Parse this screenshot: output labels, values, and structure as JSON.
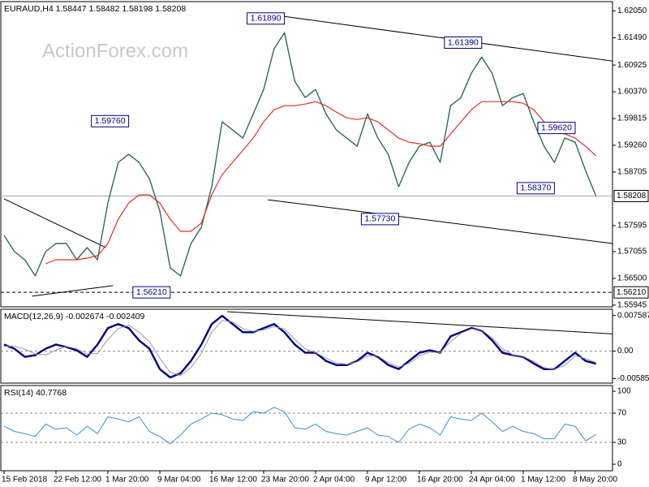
{
  "chart_data": [
    {
      "type": "line",
      "title": "EURAUD,H4  1.58447 1.58482 1.58198 1.58208",
      "watermark": "ActionForex.com",
      "categories": [
        "15 Feb 2018",
        null,
        null,
        null,
        null,
        "22 Feb 12:00",
        null,
        null,
        null,
        null,
        "1 Mar 20:00",
        null,
        null,
        null,
        null,
        "9 Mar 04:00",
        null,
        null,
        null,
        null,
        "16 Mar 12:00",
        null,
        null,
        null,
        null,
        "23 Mar 20:00",
        null,
        null,
        null,
        null,
        "2 Apr 04:00",
        null,
        null,
        null,
        null,
        "9 Apr 12:00",
        null,
        null,
        null,
        null,
        "16 Apr 20:00",
        null,
        null,
        null,
        null,
        "24 Apr 04:00",
        null,
        null,
        null,
        null,
        "1 May 12:00",
        null,
        null,
        null,
        null,
        "8 May 20:00",
        null,
        null
      ],
      "ylim": [
        1.5591,
        1.6224
      ],
      "yticks": [
        {
          "value": 1.6205,
          "label": "1.62050"
        },
        {
          "value": 1.6149,
          "label": "1.61490"
        },
        1.60925,
        {
          "value": 1.6037,
          "label": "1.60370"
        },
        1.59815,
        {
          "value": 1.5926,
          "label": "1.59260"
        },
        1.58705,
        1.57595,
        1.57055,
        {
          "value": 1.565,
          "label": "1.56500"
        },
        1.55945
      ],
      "series": [
        {
          "color": "#2e6b5b",
          "width": 1.4,
          "values": [
            1.57391,
            1.57055,
            1.56887,
            1.56551,
            1.57055,
            1.57223,
            1.57223,
            1.56887,
            1.57139,
            1.56887,
            1.58064,
            1.58905,
            1.59073,
            1.58905,
            1.58569,
            1.57896,
            1.56719,
            1.56551,
            1.57223,
            1.5756,
            1.584,
            1.59746,
            1.59578,
            1.5941,
            1.59914,
            1.60419,
            1.6126,
            1.61596,
            1.60587,
            1.6025,
            1.60419,
            1.59914,
            1.59578,
            1.5941,
            1.59241,
            1.59914,
            1.5941,
            1.59073,
            1.584,
            1.58905,
            1.59241,
            1.59325,
            1.58905,
            1.60082,
            1.6025,
            1.60755,
            1.61091,
            1.60755,
            1.60082,
            1.6025,
            1.60335,
            1.59746,
            1.59241,
            1.58905,
            1.5941,
            1.59325,
            1.58737,
            1.58208
          ]
        },
        {
          "color": "#e03028",
          "width": 1.2,
          "values": [
            null,
            null,
            null,
            null,
            1.56803,
            1.56887,
            1.56887,
            1.56887,
            1.5692,
            1.56971,
            1.57223,
            1.57728,
            1.58064,
            1.58232,
            1.58232,
            1.58064,
            1.57728,
            1.57475,
            1.57475,
            1.57644,
            1.58232,
            1.58653,
            1.58905,
            1.59157,
            1.5941,
            1.59746,
            1.59998,
            1.60082,
            1.60082,
            1.60116,
            1.60166,
            1.60082,
            1.59948,
            1.5983,
            1.59796,
            1.5983,
            1.59746,
            1.59578,
            1.5941,
            1.59325,
            1.59292,
            1.59241,
            1.59241,
            1.59494,
            1.59746,
            1.59998,
            1.60166,
            1.60166,
            1.60166,
            1.60166,
            1.60133,
            1.59998,
            1.59746,
            1.59578,
            1.59494,
            1.5941,
            1.59241,
            1.5904
          ]
        }
      ],
      "price_lines": [
        {
          "value": 1.58208,
          "label": "1.58208",
          "color": "#aaaaaa",
          "dashed": false
        },
        {
          "value": 1.5621,
          "label": "1.56210",
          "color": "#000000",
          "dashed": true
        }
      ],
      "trendlines": [
        {
          "x": [
            27,
            58.6
          ],
          "y": [
            1.61932,
            1.61007
          ]
        },
        {
          "x": [
            25.4,
            58.6
          ],
          "y": [
            1.58131,
            1.57223
          ]
        },
        {
          "x": [
            0,
            9.8
          ],
          "y": [
            1.58148,
            1.57139
          ]
        },
        {
          "x": [
            2.7,
            10.5
          ],
          "y": [
            1.5613,
            1.56349
          ]
        }
      ],
      "annotations": [
        {
          "x": 27,
          "value": 1.6189,
          "label": "1.61890"
        },
        {
          "x": 12,
          "value": 1.5976,
          "label": "1.59760"
        },
        {
          "x": 16,
          "value": 1.5621,
          "label": "1.56210"
        },
        {
          "x": 38,
          "value": 1.5773,
          "label": "1.57730"
        },
        {
          "x": 46,
          "value": 1.6139,
          "label": "1.61390"
        },
        {
          "x": 55,
          "value": 1.5962,
          "label": "1.59620"
        },
        {
          "x": 53,
          "value": 1.5837,
          "label": "1.58370"
        }
      ]
    },
    {
      "type": "line",
      "title": "MACD(12,26,9) -0.002674 -0.002409",
      "ylim": [
        -0.0068,
        0.0089
      ],
      "yticks": [
        0.007587,
        {
          "value": 0,
          "label": "0.00"
        },
        -0.005853
      ],
      "levels": [
        0
      ],
      "series": [
        {
          "color": "#00007f",
          "width": 2.4,
          "values": [
            0.0014,
            0.00052,
            -0.00122,
            -0.00087,
            0.00052,
            0.0014,
            0.00087,
            0.00017,
            -0.00122,
            0.0014,
            0.00489,
            0.00576,
            0.00489,
            0.00227,
            0.00052,
            -0.00384,
            -0.00559,
            -0.00471,
            -0.00209,
            0.0014,
            0.00576,
            0.00751,
            0.00576,
            0.00401,
            0.00401,
            0.00489,
            0.00576,
            0.00401,
            0.0014,
            -0.00035,
            -0.00035,
            -0.00209,
            -0.00297,
            -0.00297,
            -0.00209,
            -0.00035,
            -0.00122,
            -0.00297,
            -0.00384,
            -0.00209,
            -0.00035,
            0.00017,
            -0.00035,
            0.00314,
            0.00401,
            0.00489,
            0.00436,
            0.00227,
            -0.00035,
            -0.00087,
            -0.00122,
            -0.00262,
            -0.00384,
            -0.00384,
            -0.00209,
            -0.00035,
            -0.00209,
            -0.00267
          ]
        },
        {
          "color": "#9a9a9a",
          "width": 1,
          "values": [
            0.001,
            0.0011,
            0.0004,
            -0.0006,
            -0.0008,
            0.0002,
            0.001,
            0.0005,
            -0.0006,
            -0.0005,
            0.0025,
            0.0048,
            0.0055,
            0.004,
            0.002,
            -0.0015,
            -0.0045,
            -0.0052,
            -0.0035,
            -0.0005,
            0.004,
            0.0065,
            0.0062,
            0.0048,
            0.0042,
            0.0045,
            0.0052,
            0.0047,
            0.0025,
            0.0005,
            -0.0003,
            -0.0015,
            -0.0025,
            -0.0028,
            -0.0023,
            -0.001,
            -0.001,
            -0.0025,
            -0.0034,
            -0.0026,
            -0.001,
            -0.0002,
            -0.0003,
            0.002,
            0.0038,
            0.0047,
            0.0045,
            0.0028,
            0.0005,
            -0.0008,
            -0.0011,
            -0.0022,
            -0.0035,
            -0.0039,
            -0.003,
            -0.001,
            -0.0016,
            -0.00241
          ]
        }
      ],
      "trendlines": [
        {
          "x": [
            21.5,
            58.6
          ],
          "y": [
            0.00838,
            0.00367
          ]
        }
      ]
    },
    {
      "type": "line",
      "title": "RSI(14) 40.7768",
      "ylim": [
        -8.9,
        107.8
      ],
      "yticks": [
        100,
        70,
        30,
        0
      ],
      "levels": [
        70,
        30
      ],
      "series": [
        {
          "color": "#3a8fd6",
          "width": 1,
          "values": [
            52,
            45,
            42,
            38,
            55,
            48,
            50,
            40,
            52,
            42,
            65,
            62,
            58,
            65,
            45,
            38,
            28,
            40,
            55,
            62,
            70,
            68,
            62,
            60,
            72,
            70,
            78,
            72,
            50,
            48,
            55,
            45,
            42,
            40,
            45,
            50,
            40,
            38,
            30,
            48,
            55,
            50,
            40,
            65,
            62,
            60,
            70,
            58,
            45,
            52,
            45,
            42,
            35,
            35,
            55,
            52,
            32,
            40.7768
          ]
        }
      ]
    }
  ]
}
